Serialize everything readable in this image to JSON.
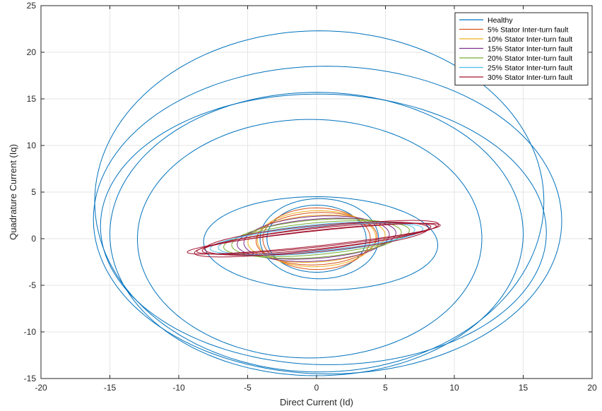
{
  "chart_data": {
    "type": "line",
    "xlabel": "Direct Current (Id)",
    "ylabel": "Quadrature Current (Iq)",
    "xlim": [
      -20,
      20
    ],
    "ylim": [
      -15,
      25
    ],
    "xticks": [
      "-20",
      "-15",
      "-10",
      "-5",
      "0",
      "5",
      "10",
      "15",
      "20"
    ],
    "yticks": [
      "-15",
      "-10",
      "-5",
      "0",
      "5",
      "10",
      "15",
      "20",
      "25"
    ],
    "grid": true,
    "legend_position": "top-right",
    "series": [
      {
        "name": "Healthy",
        "color": "#0072BD",
        "loops": [
          {
            "cx": 0.2,
            "cy": 4.0,
            "rx": 16.3,
            "ry": 18.3,
            "tilt": 0
          },
          {
            "cx": 0.8,
            "cy": 2.0,
            "rx": 17.0,
            "ry": 16.5,
            "tilt": -5
          },
          {
            "cx": 0.0,
            "cy": 0.5,
            "rx": 15.0,
            "ry": 15.2,
            "tilt": -3
          },
          {
            "cx": 0.5,
            "cy": 1.0,
            "rx": 16.2,
            "ry": 14.5,
            "tilt": -6
          },
          {
            "cx": -0.5,
            "cy": 0.0,
            "rx": 12.5,
            "ry": 12.8,
            "tilt": -4
          },
          {
            "cx": 0.3,
            "cy": -0.5,
            "rx": 8.5,
            "ry": 5.0,
            "tilt": -2
          },
          {
            "cx": 0.2,
            "cy": 0.0,
            "rx": 4.3,
            "ry": 4.3,
            "tilt": 0
          },
          {
            "cx": 0.0,
            "cy": 0.0,
            "rx": 3.6,
            "ry": 3.6,
            "tilt": 0
          }
        ]
      },
      {
        "name": "5% Stator Inter-turn fault",
        "color": "#D95319",
        "loops": [
          {
            "cx": 0.0,
            "cy": 0.0,
            "rx": 3.9,
            "ry": 3.3,
            "tilt": 0
          },
          {
            "cx": 0.0,
            "cy": 0.0,
            "rx": 4.4,
            "ry": 2.8,
            "tilt": 5
          }
        ]
      },
      {
        "name": "10% Stator Inter-turn fault",
        "color": "#EDB120",
        "loops": [
          {
            "cx": 0.0,
            "cy": 0.0,
            "rx": 4.3,
            "ry": 3.0,
            "tilt": 3
          },
          {
            "cx": 0.0,
            "cy": 0.0,
            "rx": 5.0,
            "ry": 2.5,
            "tilt": 6
          }
        ]
      },
      {
        "name": "15% Stator Inter-turn fault",
        "color": "#7E2F8E",
        "loops": [
          {
            "cx": 0.0,
            "cy": 0.0,
            "rx": 5.3,
            "ry": 2.4,
            "tilt": 6
          },
          {
            "cx": 0.0,
            "cy": 0.0,
            "rx": 5.8,
            "ry": 2.1,
            "tilt": 7
          }
        ]
      },
      {
        "name": "20% Stator Inter-turn fault",
        "color": "#77AC30",
        "loops": [
          {
            "cx": 0.0,
            "cy": 0.0,
            "rx": 6.2,
            "ry": 2.0,
            "tilt": 7
          },
          {
            "cx": 0.0,
            "cy": 0.0,
            "rx": 6.8,
            "ry": 1.7,
            "tilt": 8
          }
        ]
      },
      {
        "name": "25% Stator Inter-turn fault",
        "color": "#4DBEEE",
        "loops": [
          {
            "cx": 0.0,
            "cy": 0.0,
            "rx": 7.2,
            "ry": 1.5,
            "tilt": 8
          },
          {
            "cx": 0.0,
            "cy": 0.0,
            "rx": 7.8,
            "ry": 1.3,
            "tilt": 8
          }
        ]
      },
      {
        "name": "30% Stator Inter-turn fault",
        "color": "#A2142F",
        "loops": [
          {
            "cx": 0.0,
            "cy": 0.0,
            "rx": 8.4,
            "ry": 1.1,
            "tilt": 9
          },
          {
            "cx": 0.0,
            "cy": 0.0,
            "rx": 8.8,
            "ry": 0.9,
            "tilt": 9
          },
          {
            "cx": -0.2,
            "cy": 0.0,
            "rx": 9.3,
            "ry": 0.8,
            "tilt": 9
          },
          {
            "cx": 0.0,
            "cy": 0.0,
            "rx": 8.2,
            "ry": 1.4,
            "tilt": 8
          },
          {
            "cx": 0.0,
            "cy": 0.0,
            "rx": 9.0,
            "ry": 1.2,
            "tilt": 10
          }
        ]
      }
    ]
  }
}
